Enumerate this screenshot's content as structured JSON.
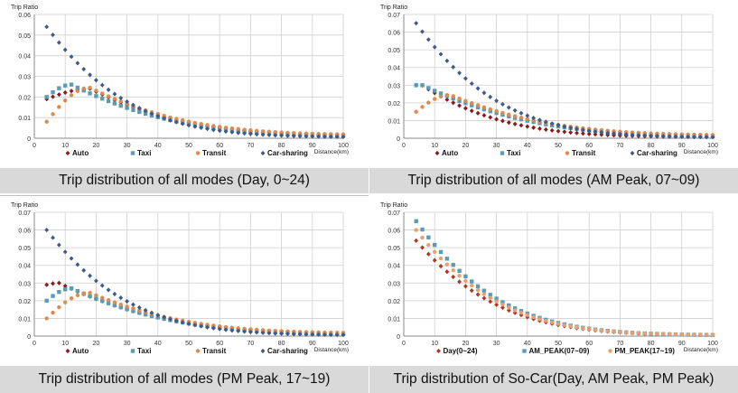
{
  "chart_data": [
    {
      "type": "scatter",
      "ylabel": "Trip Ratio",
      "xlabel": "Distance(km)",
      "ylim": [
        0,
        0.06
      ],
      "yticks": [
        "0",
        "0.01",
        "0.02",
        "0.03",
        "0.04",
        "0.05",
        "0.06"
      ],
      "xlim": [
        0,
        100
      ],
      "xticks": [
        "0",
        "10",
        "20",
        "30",
        "40",
        "50",
        "60",
        "70",
        "80",
        "90",
        "100"
      ],
      "grid": true,
      "legend_position": "bottom",
      "caption": "Trip distribution of all modes (Day, 0~24)",
      "series": [
        {
          "name": "Auto",
          "color": "#8b1a1a",
          "marker": "diamond",
          "peak_x": 18,
          "peak_y": 0.024,
          "start_y": 0.019,
          "tail_y": 0.001
        },
        {
          "name": "Taxi",
          "color": "#5b9bb5",
          "marker": "square",
          "peak_x": 12,
          "peak_y": 0.026,
          "start_y": 0.02,
          "tail_y": 0.0008
        },
        {
          "name": "Transit",
          "color": "#e08a4c",
          "marker": "circle",
          "peak_x": 18,
          "peak_y": 0.0245,
          "start_y": 0.008,
          "tail_y": 0.0015
        },
        {
          "name": "Car-sharing",
          "color": "#3d5a8f",
          "marker": "diamond",
          "peak_x": 4,
          "peak_y": 0.054,
          "start_y": 0.054,
          "tail_y": 0.0005
        }
      ]
    },
    {
      "type": "scatter",
      "ylabel": "Trip Ratio",
      "xlabel": "Distance(km)",
      "ylim": [
        0,
        0.07
      ],
      "yticks": [
        "0",
        "0.01",
        "0.02",
        "0.03",
        "0.04",
        "0.05",
        "0.06",
        "0.07"
      ],
      "xlim": [
        0,
        100
      ],
      "xticks": [
        "0",
        "10",
        "20",
        "30",
        "40",
        "50",
        "60",
        "70",
        "80",
        "90",
        "100"
      ],
      "grid": true,
      "legend_position": "bottom",
      "caption": "Trip distribution of all modes (AM Peak, 07~09)",
      "series": [
        {
          "name": "Auto",
          "color": "#8b1a1a",
          "marker": "diamond",
          "peak_x": 5,
          "peak_y": 0.031,
          "start_y": 0.03,
          "tail_y": 0.0006
        },
        {
          "name": "Taxi",
          "color": "#5b9bb5",
          "marker": "square",
          "peak_x": 6,
          "peak_y": 0.03,
          "start_y": 0.03,
          "tail_y": 0.0005
        },
        {
          "name": "Transit",
          "color": "#e08a4c",
          "marker": "circle",
          "peak_x": 15,
          "peak_y": 0.0245,
          "start_y": 0.015,
          "tail_y": 0.0015
        },
        {
          "name": "Car-sharing",
          "color": "#3d5a8f",
          "marker": "diamond",
          "peak_x": 4,
          "peak_y": 0.065,
          "start_y": 0.065,
          "tail_y": 0.0004
        }
      ]
    },
    {
      "type": "scatter",
      "ylabel": "Trip Ratio",
      "xlabel": "Distance(km)",
      "ylim": [
        0,
        0.07
      ],
      "yticks": [
        "0",
        "0.01",
        "0.02",
        "0.03",
        "0.04",
        "0.05",
        "0.06",
        "0.07"
      ],
      "xlim": [
        0,
        100
      ],
      "xticks": [
        "0",
        "10",
        "20",
        "30",
        "40",
        "50",
        "60",
        "70",
        "80",
        "90",
        "100"
      ],
      "grid": true,
      "legend_position": "bottom",
      "caption": "Trip distribution of all modes (PM Peak, 17~19)",
      "series": [
        {
          "name": "Auto",
          "color": "#8b1a1a",
          "marker": "diamond",
          "peak_x": 8,
          "peak_y": 0.03,
          "start_y": 0.029,
          "tail_y": 0.0008
        },
        {
          "name": "Taxi",
          "color": "#5b9bb5",
          "marker": "square",
          "peak_x": 12,
          "peak_y": 0.027,
          "start_y": 0.02,
          "tail_y": 0.0007
        },
        {
          "name": "Transit",
          "color": "#e08a4c",
          "marker": "circle",
          "peak_x": 18,
          "peak_y": 0.0245,
          "start_y": 0.01,
          "tail_y": 0.0015
        },
        {
          "name": "Car-sharing",
          "color": "#3d5a8f",
          "marker": "diamond",
          "peak_x": 4,
          "peak_y": 0.06,
          "start_y": 0.06,
          "tail_y": 0.0005
        }
      ]
    },
    {
      "type": "scatter",
      "ylabel": "Trip Ratio",
      "xlabel": "Distance(km)",
      "ylim": [
        0,
        0.07
      ],
      "yticks": [
        "0",
        "0.01",
        "0.02",
        "0.03",
        "0.04",
        "0.05",
        "0.06",
        "0.07"
      ],
      "xlim": [
        0,
        100
      ],
      "xticks": [
        "0",
        "10",
        "20",
        "30",
        "40",
        "50",
        "60",
        "70",
        "80",
        "90",
        "100"
      ],
      "grid": true,
      "legend_position": "bottom",
      "caption": "Trip distribution of So-Car(Day, AM Peak, PM Peak)",
      "series": [
        {
          "name": "Day(0~24)",
          "color": "#b5361f",
          "marker": "diamond",
          "peak_x": 4,
          "peak_y": 0.054,
          "start_y": 0.054,
          "tail_y": 0.0005
        },
        {
          "name": "AM_PEAK(07~09)",
          "color": "#5b9bb5",
          "marker": "square",
          "peak_x": 4,
          "peak_y": 0.065,
          "start_y": 0.065,
          "tail_y": 0.0004
        },
        {
          "name": "PM_PEAK(17~19)",
          "color": "#e8a070",
          "marker": "circle",
          "peak_x": 4,
          "peak_y": 0.06,
          "start_y": 0.06,
          "tail_y": 0.0005
        }
      ]
    }
  ]
}
